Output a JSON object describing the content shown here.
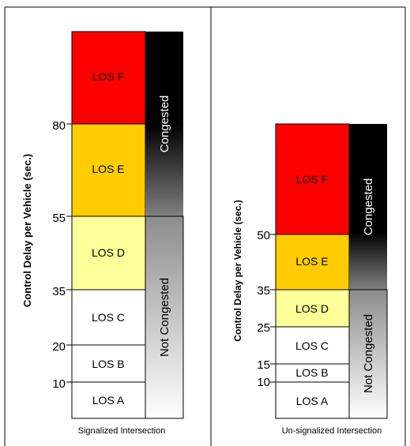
{
  "panels": [
    {
      "id": "signalized",
      "caption": "Signalized Intersection",
      "yaxis_label": "Control Delay per Vehicle (sec.)",
      "ticks": [
        "80",
        "55",
        "35",
        "20",
        "10"
      ],
      "levels": [
        {
          "label": "LOS F",
          "color": "#ff0000"
        },
        {
          "label": "LOS E",
          "color": "#ffcc00"
        },
        {
          "label": "LOS D",
          "color": "#ffff99"
        },
        {
          "label": "LOS C",
          "color": "#ffffff"
        },
        {
          "label": "LOS B",
          "color": "#ffffff"
        },
        {
          "label": "LOS A",
          "color": "#ffffff"
        }
      ],
      "bands": [
        {
          "label": "Congested"
        },
        {
          "label": "Not Congested"
        }
      ]
    },
    {
      "id": "unsignalized",
      "caption": "Un-signalized Intersection",
      "yaxis_label": "Control Delay per Vehicle (sec.)",
      "ticks": [
        "50",
        "35",
        "25",
        "15",
        "10"
      ],
      "levels": [
        {
          "label": "LOS F",
          "color": "#ff0000"
        },
        {
          "label": "LOS E",
          "color": "#ffcc00"
        },
        {
          "label": "LOS D",
          "color": "#ffff99"
        },
        {
          "label": "LOS C",
          "color": "#ffffff"
        },
        {
          "label": "LOS B",
          "color": "#ffffff"
        },
        {
          "label": "LOS A",
          "color": "#ffffff"
        }
      ],
      "bands": [
        {
          "label": "Congested"
        },
        {
          "label": "Not Congested"
        }
      ]
    }
  ]
}
